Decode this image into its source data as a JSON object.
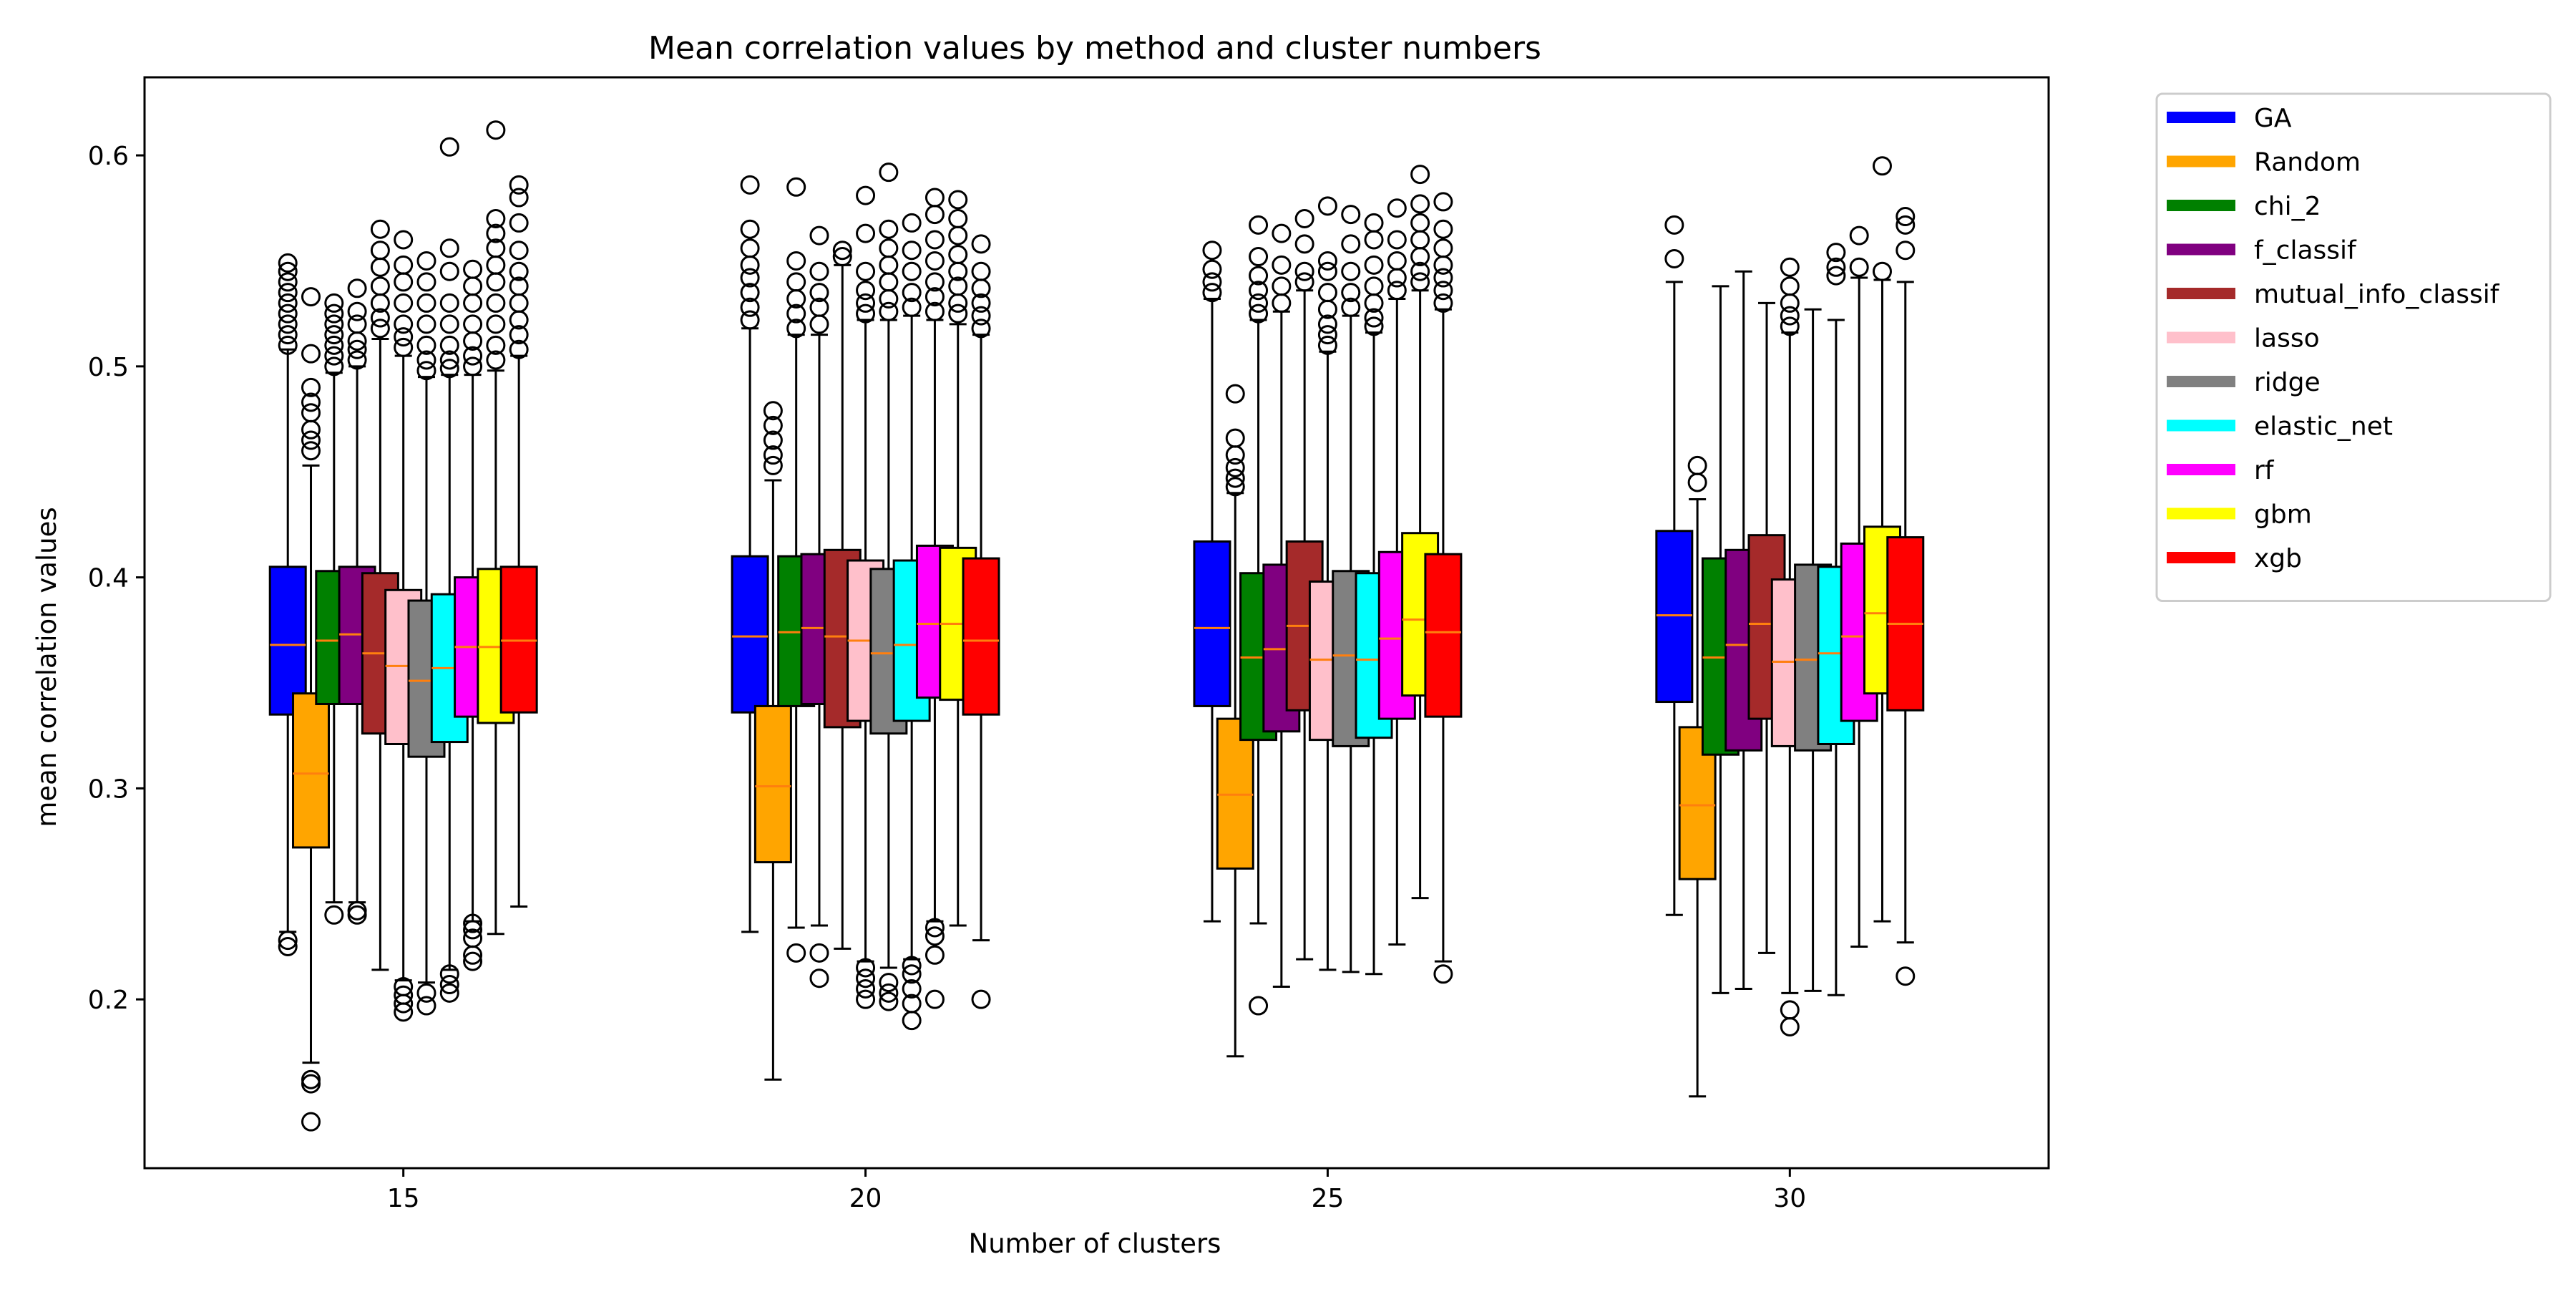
{
  "chart_data": {
    "type": "box",
    "title": "Mean correlation values by method and cluster numbers",
    "xlabel": "Number of clusters",
    "ylabel": "mean correlation values",
    "xlim": [
      12.2,
      32.8
    ],
    "ylim": [
      0.12,
      0.637
    ],
    "x_ticks": [
      15,
      20,
      25,
      30
    ],
    "x_tick_labels": [
      "15",
      "20",
      "25",
      "30"
    ],
    "y_ticks": [
      0.2,
      0.3,
      0.4,
      0.5,
      0.6
    ],
    "y_tick_labels": [
      "0.2",
      "0.3",
      "0.4",
      "0.5",
      "0.6"
    ],
    "grid": false,
    "legend_position": "outside-right",
    "median_color": "#ff7f0e",
    "series": [
      {
        "name": "GA",
        "color": "#0000ff",
        "offset": -1.25
      },
      {
        "name": "Random",
        "color": "#ffa500",
        "offset": -1.0
      },
      {
        "name": "chi_2",
        "color": "#008000",
        "offset": -0.75
      },
      {
        "name": "f_classif",
        "color": "#800080",
        "offset": -0.5
      },
      {
        "name": "mutual_info_classif",
        "color": "#a52a2a",
        "offset": -0.25
      },
      {
        "name": "lasso",
        "color": "#ffc0cb",
        "offset": 0.0
      },
      {
        "name": "ridge",
        "color": "#808080",
        "offset": 0.25
      },
      {
        "name": "elastic_net",
        "color": "#00ffff",
        "offset": 0.5
      },
      {
        "name": "rf",
        "color": "#ff00ff",
        "offset": 0.75
      },
      {
        "name": "gbm",
        "color": "#ffff00",
        "offset": 1.0
      },
      {
        "name": "xgb",
        "color": "#ff0000",
        "offset": 1.25
      }
    ],
    "groups": [
      {
        "x": 15,
        "boxes": [
          {
            "series": "GA",
            "whislo": 0.232,
            "q1": 0.335,
            "med": 0.368,
            "q3": 0.405,
            "whishi": 0.508,
            "fliers": [
              0.225,
              0.228,
              0.51,
              0.515,
              0.52,
              0.525,
              0.53,
              0.535,
              0.54,
              0.545,
              0.549
            ]
          },
          {
            "series": "Random",
            "whislo": 0.17,
            "q1": 0.272,
            "med": 0.307,
            "q3": 0.345,
            "whishi": 0.453,
            "fliers": [
              0.142,
              0.16,
              0.162,
              0.46,
              0.465,
              0.47,
              0.478,
              0.483,
              0.49,
              0.506,
              0.533
            ]
          },
          {
            "series": "chi_2",
            "whislo": 0.246,
            "q1": 0.34,
            "med": 0.37,
            "q3": 0.403,
            "whishi": 0.497,
            "fliers": [
              0.24,
              0.5,
              0.505,
              0.51,
              0.515,
              0.52,
              0.525,
              0.53
            ]
          },
          {
            "series": "f_classif",
            "whislo": 0.246,
            "q1": 0.34,
            "med": 0.373,
            "q3": 0.405,
            "whishi": 0.5,
            "fliers": [
              0.24,
              0.242,
              0.503,
              0.508,
              0.512,
              0.52,
              0.526,
              0.537
            ]
          },
          {
            "series": "mutual_info_classif",
            "whislo": 0.214,
            "q1": 0.326,
            "med": 0.364,
            "q3": 0.402,
            "whishi": 0.513,
            "fliers": [
              0.518,
              0.523,
              0.53,
              0.538,
              0.547,
              0.555,
              0.565
            ]
          },
          {
            "series": "lasso",
            "whislo": 0.209,
            "q1": 0.321,
            "med": 0.358,
            "q3": 0.394,
            "whishi": 0.505,
            "fliers": [
              0.194,
              0.198,
              0.202,
              0.206,
              0.509,
              0.514,
              0.52,
              0.53,
              0.54,
              0.548,
              0.56
            ]
          },
          {
            "series": "ridge",
            "whislo": 0.208,
            "q1": 0.315,
            "med": 0.351,
            "q3": 0.389,
            "whishi": 0.495,
            "fliers": [
              0.197,
              0.203,
              0.498,
              0.503,
              0.51,
              0.52,
              0.53,
              0.54,
              0.55
            ]
          },
          {
            "series": "elastic_net",
            "whislo": 0.214,
            "q1": 0.322,
            "med": 0.357,
            "q3": 0.392,
            "whishi": 0.496,
            "fliers": [
              0.203,
              0.207,
              0.212,
              0.499,
              0.503,
              0.51,
              0.52,
              0.53,
              0.545,
              0.556,
              0.604
            ]
          },
          {
            "series": "rf",
            "whislo": 0.237,
            "q1": 0.334,
            "med": 0.367,
            "q3": 0.4,
            "whishi": 0.496,
            "fliers": [
              0.218,
              0.221,
              0.229,
              0.233,
              0.236,
              0.5,
              0.505,
              0.512,
              0.52,
              0.53,
              0.538,
              0.546
            ]
          },
          {
            "series": "gbm",
            "whislo": 0.231,
            "q1": 0.331,
            "med": 0.367,
            "q3": 0.404,
            "whishi": 0.498,
            "fliers": [
              0.503,
              0.51,
              0.52,
              0.53,
              0.54,
              0.548,
              0.556,
              0.563,
              0.57,
              0.612
            ]
          },
          {
            "series": "xgb",
            "whislo": 0.244,
            "q1": 0.336,
            "med": 0.37,
            "q3": 0.405,
            "whishi": 0.505,
            "fliers": [
              0.508,
              0.515,
              0.522,
              0.53,
              0.538,
              0.545,
              0.555,
              0.568,
              0.58,
              0.586
            ]
          }
        ]
      },
      {
        "x": 20,
        "boxes": [
          {
            "series": "GA",
            "whislo": 0.232,
            "q1": 0.336,
            "med": 0.372,
            "q3": 0.41,
            "whishi": 0.518,
            "fliers": [
              0.522,
              0.528,
              0.535,
              0.542,
              0.548,
              0.556,
              0.565,
              0.586
            ]
          },
          {
            "series": "Random",
            "whislo": 0.162,
            "q1": 0.265,
            "med": 0.301,
            "q3": 0.339,
            "whishi": 0.446,
            "fliers": [
              0.453,
              0.458,
              0.465,
              0.472,
              0.479
            ]
          },
          {
            "series": "chi_2",
            "whislo": 0.234,
            "q1": 0.339,
            "med": 0.374,
            "q3": 0.41,
            "whishi": 0.515,
            "fliers": [
              0.222,
              0.518,
              0.525,
              0.532,
              0.54,
              0.55,
              0.585
            ]
          },
          {
            "series": "f_classif",
            "whislo": 0.235,
            "q1": 0.34,
            "med": 0.376,
            "q3": 0.411,
            "whishi": 0.515,
            "fliers": [
              0.21,
              0.222,
              0.52,
              0.528,
              0.535,
              0.545,
              0.562
            ]
          },
          {
            "series": "mutual_info_classif",
            "whislo": 0.224,
            "q1": 0.329,
            "med": 0.372,
            "q3": 0.413,
            "whishi": 0.548,
            "fliers": [
              0.552,
              0.555
            ]
          },
          {
            "series": "lasso",
            "whislo": 0.218,
            "q1": 0.332,
            "med": 0.37,
            "q3": 0.408,
            "whishi": 0.522,
            "fliers": [
              0.2,
              0.205,
              0.21,
              0.215,
              0.525,
              0.53,
              0.536,
              0.545,
              0.563,
              0.581
            ]
          },
          {
            "series": "ridge",
            "whislo": 0.215,
            "q1": 0.326,
            "med": 0.364,
            "q3": 0.404,
            "whishi": 0.522,
            "fliers": [
              0.199,
              0.203,
              0.208,
              0.526,
              0.532,
              0.54,
              0.548,
              0.556,
              0.565,
              0.592
            ]
          },
          {
            "series": "elastic_net",
            "whislo": 0.219,
            "q1": 0.332,
            "med": 0.368,
            "q3": 0.408,
            "whishi": 0.524,
            "fliers": [
              0.19,
              0.198,
              0.205,
              0.212,
              0.216,
              0.528,
              0.535,
              0.545,
              0.555,
              0.568
            ]
          },
          {
            "series": "rf",
            "whislo": 0.237,
            "q1": 0.343,
            "med": 0.378,
            "q3": 0.415,
            "whishi": 0.522,
            "fliers": [
              0.2,
              0.221,
              0.23,
              0.234,
              0.526,
              0.533,
              0.54,
              0.55,
              0.56,
              0.572,
              0.58
            ]
          },
          {
            "series": "gbm",
            "whislo": 0.235,
            "q1": 0.342,
            "med": 0.378,
            "q3": 0.414,
            "whishi": 0.52,
            "fliers": [
              0.525,
              0.53,
              0.538,
              0.545,
              0.553,
              0.562,
              0.57,
              0.579
            ]
          },
          {
            "series": "xgb",
            "whislo": 0.228,
            "q1": 0.335,
            "med": 0.37,
            "q3": 0.409,
            "whishi": 0.515,
            "fliers": [
              0.2,
              0.518,
              0.524,
              0.53,
              0.537,
              0.545,
              0.558
            ]
          }
        ]
      },
      {
        "x": 25,
        "boxes": [
          {
            "series": "GA",
            "whislo": 0.237,
            "q1": 0.339,
            "med": 0.376,
            "q3": 0.417,
            "whishi": 0.532,
            "fliers": [
              0.535,
              0.54,
              0.546,
              0.555
            ]
          },
          {
            "series": "Random",
            "whislo": 0.173,
            "q1": 0.262,
            "med": 0.297,
            "q3": 0.333,
            "whishi": 0.44,
            "fliers": [
              0.443,
              0.447,
              0.452,
              0.458,
              0.466,
              0.487
            ]
          },
          {
            "series": "chi_2",
            "whislo": 0.236,
            "q1": 0.323,
            "med": 0.362,
            "q3": 0.402,
            "whishi": 0.522,
            "fliers": [
              0.197,
              0.525,
              0.53,
              0.536,
              0.543,
              0.552,
              0.567
            ]
          },
          {
            "series": "f_classif",
            "whislo": 0.206,
            "q1": 0.327,
            "med": 0.366,
            "q3": 0.406,
            "whishi": 0.526,
            "fliers": [
              0.53,
              0.538,
              0.548,
              0.563
            ]
          },
          {
            "series": "mutual_info_classif",
            "whislo": 0.219,
            "q1": 0.337,
            "med": 0.377,
            "q3": 0.417,
            "whishi": 0.536,
            "fliers": [
              0.54,
              0.545,
              0.558,
              0.57
            ]
          },
          {
            "series": "lasso",
            "whislo": 0.214,
            "q1": 0.323,
            "med": 0.361,
            "q3": 0.398,
            "whishi": 0.507,
            "fliers": [
              0.51,
              0.515,
              0.52,
              0.527,
              0.535,
              0.545,
              0.55,
              0.576
            ]
          },
          {
            "series": "ridge",
            "whislo": 0.213,
            "q1": 0.32,
            "med": 0.363,
            "q3": 0.403,
            "whishi": 0.524,
            "fliers": [
              0.528,
              0.535,
              0.545,
              0.558,
              0.572
            ]
          },
          {
            "series": "elastic_net",
            "whislo": 0.212,
            "q1": 0.324,
            "med": 0.361,
            "q3": 0.402,
            "whishi": 0.516,
            "fliers": [
              0.519,
              0.523,
              0.53,
              0.538,
              0.548,
              0.56,
              0.568
            ]
          },
          {
            "series": "rf",
            "whislo": 0.226,
            "q1": 0.333,
            "med": 0.371,
            "q3": 0.412,
            "whishi": 0.532,
            "fliers": [
              0.536,
              0.542,
              0.55,
              0.56,
              0.575
            ]
          },
          {
            "series": "gbm",
            "whislo": 0.248,
            "q1": 0.344,
            "med": 0.38,
            "q3": 0.421,
            "whishi": 0.536,
            "fliers": [
              0.54,
              0.545,
              0.552,
              0.56,
              0.568,
              0.577,
              0.591
            ]
          },
          {
            "series": "xgb",
            "whislo": 0.218,
            "q1": 0.334,
            "med": 0.374,
            "q3": 0.411,
            "whishi": 0.527,
            "fliers": [
              0.212,
              0.53,
              0.536,
              0.542,
              0.548,
              0.556,
              0.565,
              0.578
            ]
          }
        ]
      },
      {
        "x": 30,
        "boxes": [
          {
            "series": "GA",
            "whislo": 0.24,
            "q1": 0.341,
            "med": 0.382,
            "q3": 0.422,
            "whishi": 0.54,
            "fliers": [
              0.551,
              0.567
            ]
          },
          {
            "series": "Random",
            "whislo": 0.154,
            "q1": 0.257,
            "med": 0.292,
            "q3": 0.329,
            "whishi": 0.437,
            "fliers": [
              0.445,
              0.453
            ]
          },
          {
            "series": "chi_2",
            "whislo": 0.203,
            "q1": 0.316,
            "med": 0.362,
            "q3": 0.409,
            "whishi": 0.538,
            "fliers": []
          },
          {
            "series": "f_classif",
            "whislo": 0.205,
            "q1": 0.318,
            "med": 0.368,
            "q3": 0.413,
            "whishi": 0.545,
            "fliers": []
          },
          {
            "series": "mutual_info_classif",
            "whislo": 0.222,
            "q1": 0.333,
            "med": 0.378,
            "q3": 0.42,
            "whishi": 0.53,
            "fliers": []
          },
          {
            "series": "lasso",
            "whislo": 0.203,
            "q1": 0.32,
            "med": 0.36,
            "q3": 0.399,
            "whishi": 0.516,
            "fliers": [
              0.187,
              0.195,
              0.519,
              0.524,
              0.53,
              0.538,
              0.547
            ]
          },
          {
            "series": "ridge",
            "whislo": 0.204,
            "q1": 0.318,
            "med": 0.361,
            "q3": 0.406,
            "whishi": 0.527,
            "fliers": []
          },
          {
            "series": "elastic_net",
            "whislo": 0.202,
            "q1": 0.321,
            "med": 0.364,
            "q3": 0.405,
            "whishi": 0.522,
            "fliers": [
              0.543,
              0.547,
              0.554
            ]
          },
          {
            "series": "rf",
            "whislo": 0.225,
            "q1": 0.332,
            "med": 0.372,
            "q3": 0.416,
            "whishi": 0.542,
            "fliers": [
              0.547,
              0.562
            ]
          },
          {
            "series": "gbm",
            "whislo": 0.237,
            "q1": 0.345,
            "med": 0.383,
            "q3": 0.424,
            "whishi": 0.541,
            "fliers": [
              0.545,
              0.595
            ]
          },
          {
            "series": "xgb",
            "whislo": 0.227,
            "q1": 0.337,
            "med": 0.378,
            "q3": 0.419,
            "whishi": 0.54,
            "fliers": [
              0.211,
              0.555,
              0.567,
              0.571
            ]
          }
        ]
      }
    ]
  }
}
